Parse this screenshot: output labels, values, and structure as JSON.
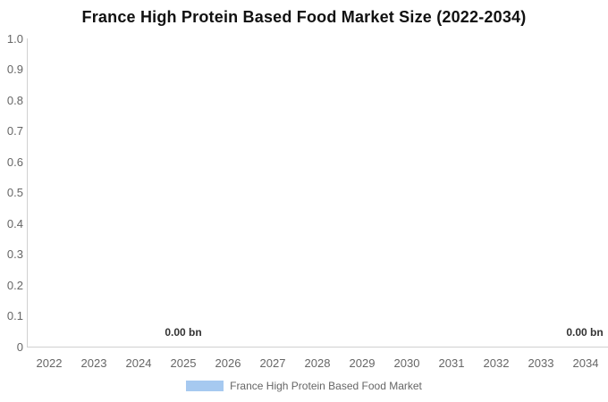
{
  "chart_data": {
    "type": "bar",
    "title": "France High Protein Based Food Market Size (2022-2034)",
    "categories": [
      "2022",
      "2023",
      "2024",
      "2025",
      "2026",
      "2027",
      "2028",
      "2029",
      "2030",
      "2031",
      "2032",
      "2033",
      "2034"
    ],
    "series": [
      {
        "name": "France High Protein Based Food Market",
        "values": [
          0,
          0,
          0,
          0,
          0,
          0,
          0,
          0,
          0,
          0,
          0,
          0,
          0
        ],
        "color": "#a6c9f0"
      }
    ],
    "value_unit": "bn",
    "ylim": [
      0,
      1.0
    ],
    "yticks": [
      "1.0",
      "0.9",
      "0.8",
      "0.7",
      "0.6",
      "0.5",
      "0.4",
      "0.3",
      "0.2",
      "0.1",
      "0"
    ],
    "grid": false,
    "legend_position": "bottom",
    "data_labels": [
      {
        "category": "2025",
        "text": "0.00 bn"
      },
      {
        "category": "2034",
        "text": "0.00 bn"
      }
    ]
  },
  "colors": {
    "background": "#ffffff",
    "title_text": "#111111",
    "axis_line": "#d0d0d0",
    "tick_label": "#666666",
    "data_label": "#333333",
    "legend_text": "#666666",
    "series": "#a6c9f0"
  }
}
